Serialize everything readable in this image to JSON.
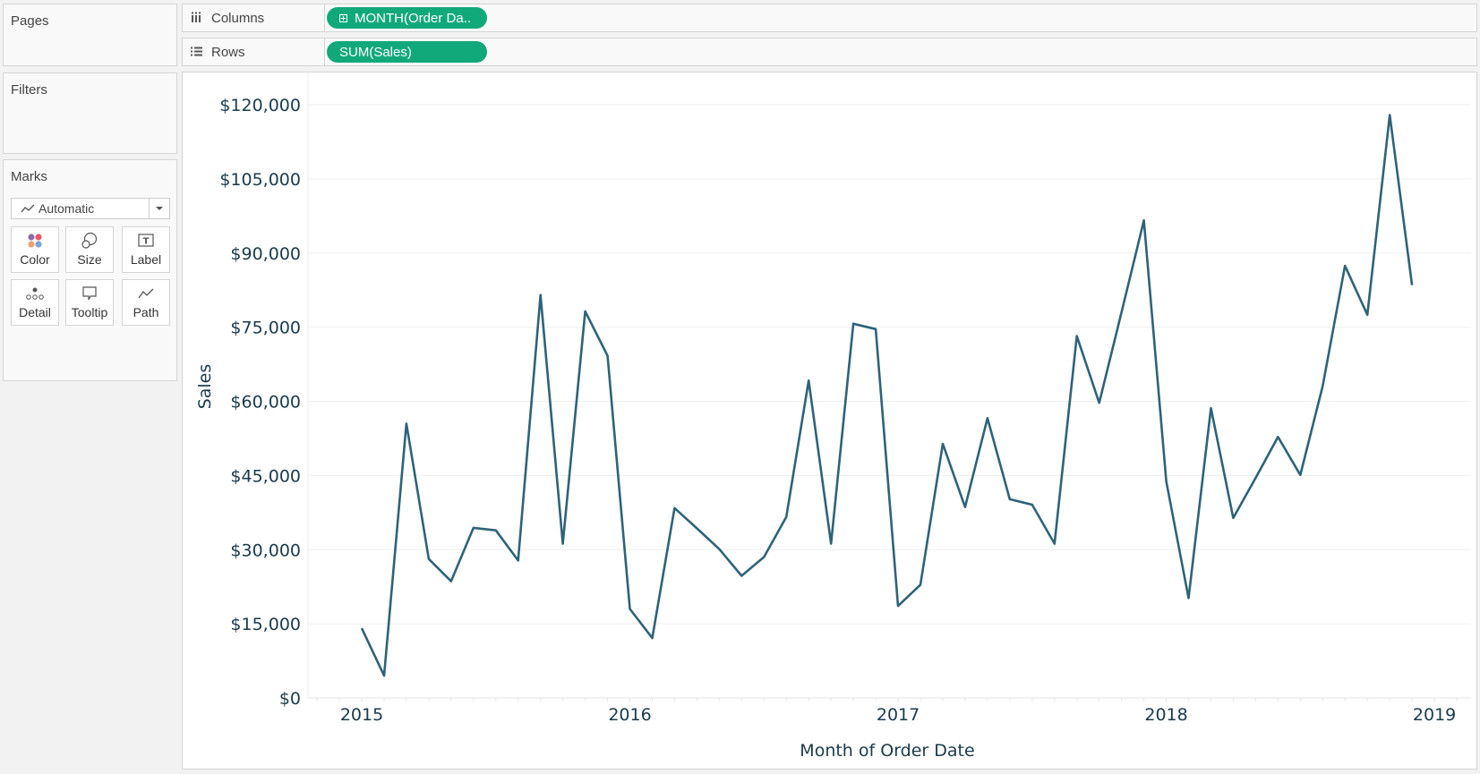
{
  "pages_card": {
    "title": "Pages"
  },
  "filters_card": {
    "title": "Filters"
  },
  "marks_card": {
    "title": "Marks",
    "mark_type": "Automatic",
    "buttons": [
      {
        "label": "Color",
        "icon": "color-icon"
      },
      {
        "label": "Size",
        "icon": "size-icon"
      },
      {
        "label": "Label",
        "icon": "label-icon"
      },
      {
        "label": "Detail",
        "icon": "detail-icon"
      },
      {
        "label": "Tooltip",
        "icon": "tooltip-icon"
      },
      {
        "label": "Path",
        "icon": "path-icon"
      }
    ]
  },
  "shelves": {
    "columns": {
      "label": "Columns",
      "pill": "MONTH(Order Da.."
    },
    "rows": {
      "label": "Rows",
      "pill": "SUM(Sales)"
    }
  },
  "colors": {
    "pill": "#12a97a",
    "line": "#2e6379",
    "text": "#1b3a4b",
    "grid": "#efefef"
  },
  "chart_data": {
    "type": "line",
    "title": "",
    "xlabel": "Month of Order Date",
    "ylabel": "Sales",
    "ylim": [
      0,
      120000
    ],
    "yticks": [
      0,
      15000,
      30000,
      45000,
      60000,
      75000,
      90000,
      105000,
      120000
    ],
    "ytick_labels": [
      "$0",
      "$15,000",
      "$30,000",
      "$45,000",
      "$60,000",
      "$75,000",
      "$90,000",
      "$105,000",
      "$120,000"
    ],
    "xtick_labels": [
      "2015",
      "2016",
      "2017",
      "2018",
      "2019"
    ],
    "grid": true,
    "legend": null,
    "x": [
      "2015-01",
      "2015-02",
      "2015-03",
      "2015-04",
      "2015-05",
      "2015-06",
      "2015-07",
      "2015-08",
      "2015-09",
      "2015-10",
      "2015-11",
      "2015-12",
      "2016-01",
      "2016-02",
      "2016-03",
      "2016-04",
      "2016-05",
      "2016-06",
      "2016-07",
      "2016-08",
      "2016-09",
      "2016-10",
      "2016-11",
      "2016-12",
      "2017-01",
      "2017-02",
      "2017-03",
      "2017-04",
      "2017-05",
      "2017-06",
      "2017-07",
      "2017-08",
      "2017-09",
      "2017-10",
      "2017-11",
      "2017-12",
      "2018-01",
      "2018-02",
      "2018-03",
      "2018-04",
      "2018-05",
      "2018-06",
      "2018-07",
      "2018-08",
      "2018-09",
      "2018-10",
      "2018-11",
      "2018-12"
    ],
    "series": [
      {
        "name": "SUM(Sales)",
        "values": [
          14100,
          4500,
          55500,
          28100,
          23600,
          34400,
          33900,
          27800,
          81500,
          31200,
          78200,
          69200,
          18000,
          12100,
          38400,
          34300,
          30100,
          24700,
          28500,
          36600,
          64200,
          31200,
          75700,
          74600,
          18600,
          22900,
          51400,
          38600,
          56600,
          40200,
          39100,
          31200,
          73200,
          59700,
          78000,
          96600,
          43800,
          20200,
          58600,
          36400,
          44500,
          52800,
          45100,
          63100,
          87400,
          77500,
          117900,
          83500
        ]
      }
    ]
  }
}
